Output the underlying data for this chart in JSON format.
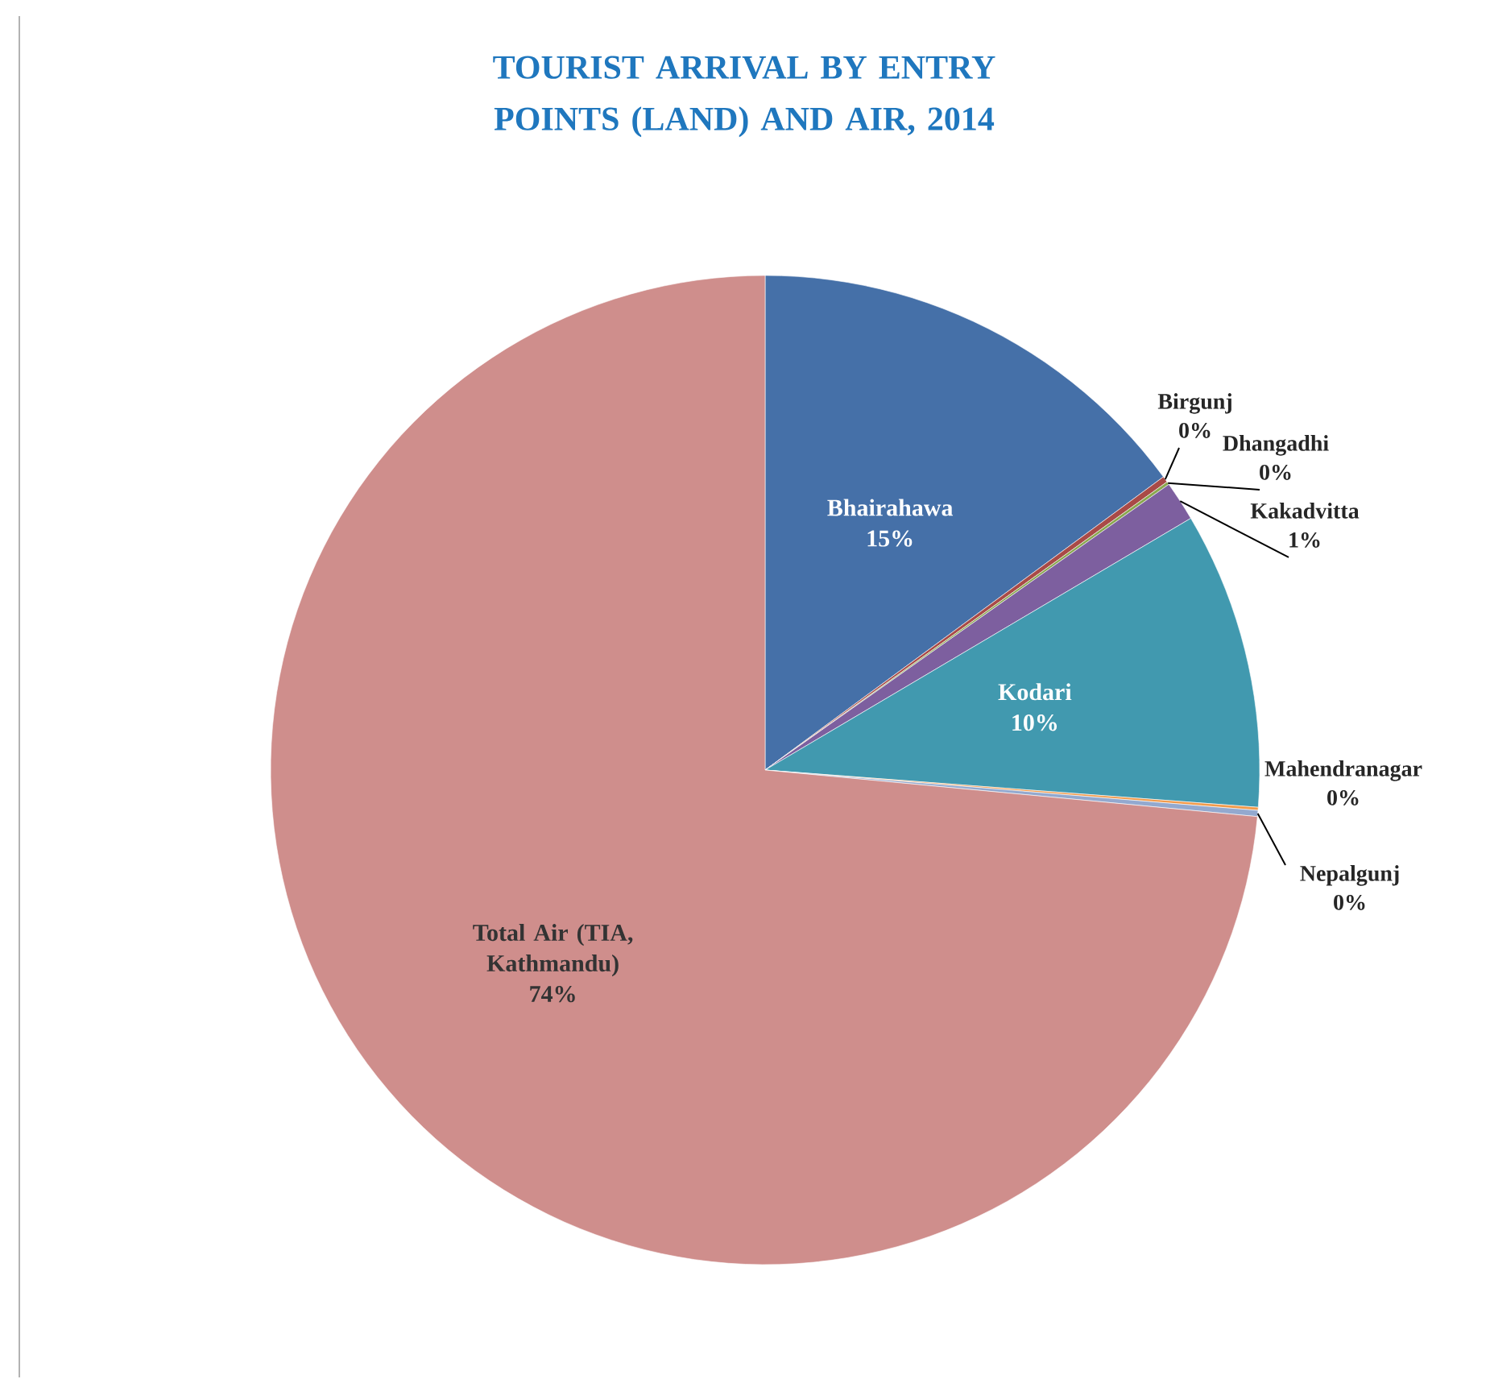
{
  "chart_data": {
    "type": "pie",
    "title": "TOURIST ARRIVAL BY ENTRY POINTS (LAND) AND AIR, 2014",
    "categories": [
      "Bhairahawa",
      "Birgunj",
      "Dhangadhi",
      "Kakadvitta",
      "Kodari",
      "Mahendranagar",
      "Nepalgunj",
      "Total Air (TIA, Kathmandu)"
    ],
    "values": [
      14.9,
      0.2,
      0.1,
      1.3,
      9.7,
      0.1,
      0.2,
      73.5
    ],
    "value_labels": [
      "15%",
      "0%",
      "0%",
      "1%",
      "10%",
      "0%",
      "0%",
      "74%"
    ],
    "colors": [
      "#4570a8",
      "#a94a47",
      "#8aa74e",
      "#7d5f9f",
      "#4199af",
      "#f29a4a",
      "#93a9cf",
      "#cf8e8c"
    ],
    "legend": false
  }
}
